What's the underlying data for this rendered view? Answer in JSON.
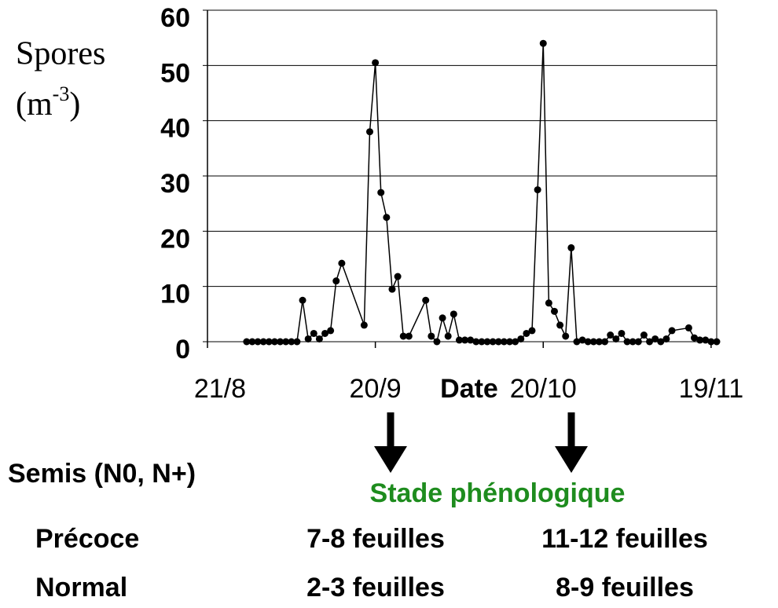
{
  "chart_data": {
    "type": "line",
    "y_label": {
      "line1": "Spores",
      "line2": "(m",
      "exponent": "-3",
      "close": ")"
    },
    "x_label": "Date",
    "x": [
      7,
      8,
      9,
      10,
      11,
      12,
      13,
      14,
      15,
      16,
      17,
      18,
      19,
      20,
      21,
      22,
      23,
      24,
      28,
      29,
      30,
      31,
      32,
      33,
      34,
      35,
      36,
      39,
      40,
      41,
      42,
      43,
      44,
      45,
      46,
      47,
      48,
      49,
      50,
      51,
      52,
      53,
      54,
      55,
      56,
      57,
      58,
      59,
      60,
      61,
      62,
      63,
      64,
      65,
      66,
      67,
      68,
      69,
      70,
      71,
      72,
      73,
      74,
      75,
      76,
      77,
      78,
      79,
      80,
      81,
      82,
      83,
      86,
      87,
      88,
      89,
      90,
      91
    ],
    "values": [
      0,
      0,
      0,
      0,
      0,
      0,
      0,
      0,
      0,
      0,
      7.5,
      0.5,
      1.5,
      0.5,
      1.5,
      2,
      11,
      14.2,
      3,
      38,
      50.5,
      27,
      22.5,
      9.5,
      11.8,
      1,
      1,
      7.5,
      1,
      0,
      4.3,
      1,
      5,
      0.3,
      0.3,
      0.3,
      0,
      0,
      0,
      0,
      0,
      0,
      0,
      0,
      0.5,
      1.5,
      2,
      27.5,
      54,
      7,
      5.5,
      3,
      1,
      17,
      0,
      0.3,
      0,
      0,
      0,
      0,
      1.2,
      0.5,
      1.5,
      0,
      0,
      0,
      1.2,
      0,
      0.5,
      0,
      0.5,
      2,
      2.5,
      0.7,
      0.3,
      0.3,
      0,
      0
    ],
    "color": "#000000",
    "xlim": [
      0,
      91
    ],
    "xticks": [
      {
        "value": 0,
        "label": "21/8"
      },
      {
        "value": 30,
        "label": "20/9"
      },
      {
        "value": 60,
        "label": "20/10"
      },
      {
        "value": 90,
        "label": "19/11"
      }
    ],
    "ylim": [
      0,
      60
    ],
    "yticks": [
      0,
      10,
      20,
      30,
      40,
      50,
      60
    ],
    "grid": true,
    "annotations": {
      "semis_heading": "Semis (N0, N+)",
      "stage_heading": "Stade phénologique",
      "rows": [
        {
          "label": "Précoce",
          "stage1": "7-8 feuilles",
          "stage2": "11-12 feuilles"
        },
        {
          "label": "Normal",
          "stage1": "2-3 feuilles",
          "stage2": "8-9 feuilles"
        }
      ]
    }
  }
}
